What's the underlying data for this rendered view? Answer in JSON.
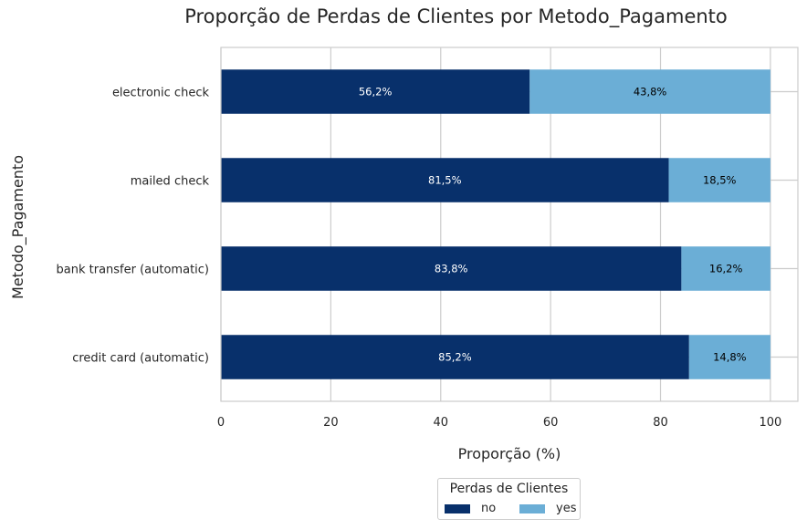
{
  "chart_data": {
    "type": "bar",
    "orientation": "horizontal",
    "stacked": true,
    "title": "Proporção de Perdas de Clientes por Metodo_Pagamento",
    "xlabel": "Proporção (%)",
    "ylabel": "Metodo_Pagamento",
    "categories": [
      "electronic check",
      "mailed check",
      "bank transfer (automatic)",
      "credit card (automatic)"
    ],
    "series": [
      {
        "name": "no",
        "values": [
          56.2,
          81.5,
          83.8,
          85.2
        ],
        "labels": [
          "56,2%",
          "81,5%",
          "83,8%",
          "85,2%"
        ],
        "color": "#08306b",
        "label_color": "#ffffff"
      },
      {
        "name": "yes",
        "values": [
          43.8,
          18.5,
          16.2,
          14.8
        ],
        "labels": [
          "43,8%",
          "18,5%",
          "16,2%",
          "14,8%"
        ],
        "color": "#6baed6",
        "label_color": "#000000"
      }
    ],
    "xlim": [
      0,
      105
    ],
    "xticks": [
      0,
      20,
      40,
      60,
      80,
      100
    ],
    "xtick_labels": [
      "0",
      "20",
      "40",
      "60",
      "80",
      "100"
    ],
    "grid": true,
    "legend_title": "Perdas de Clientes",
    "legend_placement": "bottom-center"
  }
}
